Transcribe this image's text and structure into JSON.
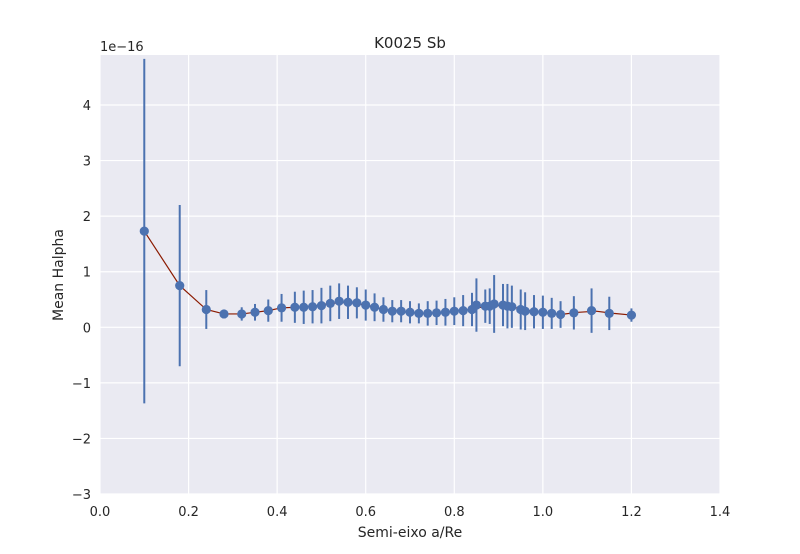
{
  "chart_data": {
    "type": "scatter",
    "title": "K0025 Sb",
    "xlabel": "Semi-eixo a/Re",
    "ylabel": "Mean Halpha",
    "scale_label": "1e−16",
    "xlim": [
      0.0,
      1.4
    ],
    "ylim": [
      -3,
      4.9
    ],
    "xticks": [
      0.0,
      0.2,
      0.4,
      0.6,
      0.8,
      1.0,
      1.2,
      1.4
    ],
    "xtick_labels": [
      "0.0",
      "0.2",
      "0.4",
      "0.6",
      "0.8",
      "1.0",
      "1.2",
      "1.4"
    ],
    "yticks": [
      -3,
      -2,
      -1,
      0,
      1,
      2,
      3,
      4
    ],
    "ytick_labels": [
      "−3",
      "−2",
      "−1",
      "0",
      "1",
      "2",
      "3",
      "4"
    ],
    "grid": true,
    "colors": {
      "background": "#eaeaf2",
      "grid": "#ffffff",
      "points": "#4c72b0",
      "errorbars": "#4c72b0",
      "fit_line": "#8b1a00",
      "text": "#262626"
    },
    "series": [
      {
        "x": [
          0.1,
          0.18,
          0.24,
          0.28,
          0.32,
          0.35,
          0.38,
          0.41,
          0.44,
          0.46,
          0.48,
          0.5,
          0.52,
          0.54,
          0.56,
          0.58,
          0.6,
          0.62,
          0.64,
          0.66,
          0.68,
          0.7,
          0.72,
          0.74,
          0.76,
          0.78,
          0.8,
          0.82,
          0.84,
          0.85,
          0.87,
          0.88,
          0.89,
          0.91,
          0.92,
          0.93,
          0.95,
          0.96,
          0.98,
          1.0,
          1.02,
          1.04,
          1.07,
          1.11,
          1.15,
          1.2
        ],
        "y": [
          1.73,
          0.75,
          0.32,
          0.24,
          0.24,
          0.27,
          0.3,
          0.35,
          0.36,
          0.36,
          0.37,
          0.39,
          0.43,
          0.47,
          0.45,
          0.44,
          0.4,
          0.36,
          0.32,
          0.29,
          0.29,
          0.27,
          0.25,
          0.25,
          0.26,
          0.27,
          0.29,
          0.3,
          0.32,
          0.4,
          0.38,
          0.38,
          0.42,
          0.4,
          0.38,
          0.37,
          0.32,
          0.29,
          0.28,
          0.27,
          0.25,
          0.23,
          0.26,
          0.3,
          0.25,
          0.22
        ],
        "yerr": [
          3.1,
          1.45,
          0.35,
          0.08,
          0.12,
          0.15,
          0.2,
          0.25,
          0.28,
          0.3,
          0.3,
          0.32,
          0.32,
          0.32,
          0.3,
          0.28,
          0.28,
          0.25,
          0.22,
          0.2,
          0.2,
          0.2,
          0.18,
          0.22,
          0.22,
          0.24,
          0.25,
          0.28,
          0.3,
          0.48,
          0.3,
          0.32,
          0.52,
          0.38,
          0.4,
          0.38,
          0.36,
          0.34,
          0.3,
          0.3,
          0.28,
          0.24,
          0.3,
          0.4,
          0.3,
          0.12
        ]
      }
    ],
    "fit_line": {
      "x": [
        0.1,
        0.18,
        0.24,
        0.28,
        0.32,
        0.35,
        0.38,
        0.41,
        0.44,
        0.48,
        0.52,
        0.56,
        0.6,
        0.64,
        0.68,
        0.72,
        0.76,
        0.8,
        0.84,
        0.88,
        0.92,
        0.96,
        1.0,
        1.04,
        1.08,
        1.12,
        1.16,
        1.2
      ],
      "y": [
        1.73,
        0.75,
        0.32,
        0.24,
        0.24,
        0.27,
        0.3,
        0.35,
        0.36,
        0.38,
        0.43,
        0.45,
        0.4,
        0.32,
        0.29,
        0.25,
        0.26,
        0.29,
        0.33,
        0.39,
        0.39,
        0.31,
        0.27,
        0.23,
        0.27,
        0.29,
        0.25,
        0.22
      ]
    }
  }
}
